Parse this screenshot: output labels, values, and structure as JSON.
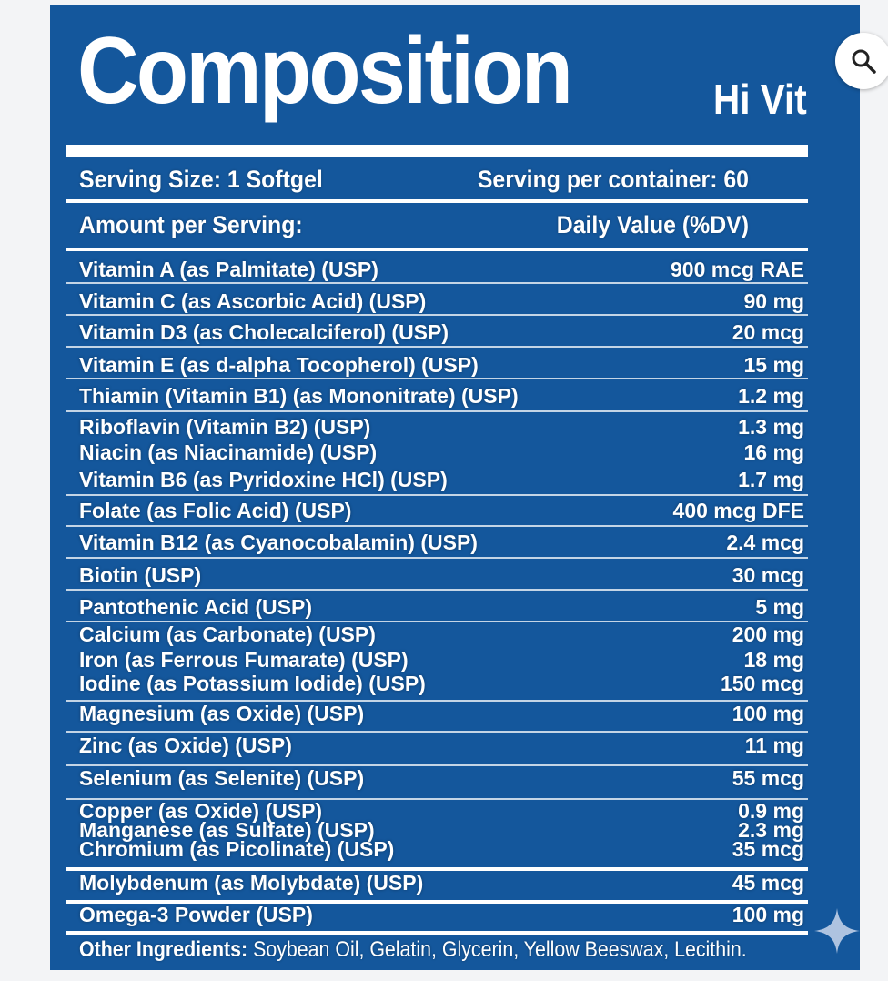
{
  "title": "Composition",
  "brand": "Hi Vit",
  "serving": {
    "size": "Serving Size: 1 Softgel",
    "per_container": "Serving per container: 60"
  },
  "header": {
    "amount": "Amount per Serving:",
    "daily_value": "Daily Value (%DV)"
  },
  "nutrients": [
    {
      "name": "Vitamin A (as Palmitate) (USP)",
      "amount": "900 mcg RAE"
    },
    {
      "name": "Vitamin C (as Ascorbic Acid) (USP)",
      "amount": "90 mg"
    },
    {
      "name": "Vitamin D3 (as Cholecalciferol) (USP)",
      "amount": "20 mcg"
    },
    {
      "name": "Vitamin E (as d-alpha Tocopherol) (USP)",
      "amount": "15 mg"
    },
    {
      "name": "Thiamin (Vitamin B1) (as Mononitrate) (USP)",
      "amount": "1.2 mg"
    },
    {
      "name": "Riboflavin (Vitamin B2) (USP)",
      "amount": "1.3 mg"
    },
    {
      "name": "Niacin (as Niacinamide) (USP)",
      "amount": "16 mg"
    },
    {
      "name": "Vitamin B6 (as Pyridoxine HCl) (USP)",
      "amount": "1.7 mg"
    },
    {
      "name": "Folate (as Folic Acid) (USP)",
      "amount": "400 mcg DFE"
    },
    {
      "name": "Vitamin B12 (as Cyanocobalamin) (USP)",
      "amount": "2.4 mcg"
    },
    {
      "name": "Biotin (USP)",
      "amount": "30 mcg"
    },
    {
      "name": "Pantothenic Acid (USP)",
      "amount": "5 mg"
    },
    {
      "name": "Calcium (as Carbonate) (USP)",
      "amount": "200 mg"
    },
    {
      "name": "Iron (as Ferrous Fumarate) (USP)",
      "amount": "18 mg"
    },
    {
      "name": "Iodine (as Potassium Iodide) (USP)",
      "amount": "150 mcg"
    },
    {
      "name": "Magnesium (as Oxide) (USP)",
      "amount": "100 mg"
    },
    {
      "name": "Zinc (as Oxide) (USP)",
      "amount": "11 mg"
    },
    {
      "name": "Selenium (as Selenite) (USP)",
      "amount": "55 mcg"
    },
    {
      "name": "Copper (as Oxide) (USP)",
      "amount": "0.9 mg"
    },
    {
      "name": "Manganese (as Sulfate) (USP)",
      "amount": "2.3 mg"
    },
    {
      "name": "Chromium (as Picolinate) (USP)",
      "amount": "35 mcg"
    },
    {
      "name": "Molybdenum (as Molybdate) (USP)",
      "amount": "45 mcg"
    },
    {
      "name": "Omega-3 Powder (USP)",
      "amount": "100 mg"
    }
  ],
  "other_ingredients": {
    "label": "Other Ingredients:",
    "text": " Soybean Oil, Gelatin, Glycerin, Yellow Beeswax, Lecithin."
  },
  "icons": {
    "search": "search-icon",
    "sparkle": "sparkle-icon"
  },
  "colors": {
    "panel": "#14579c",
    "text": "#ffffff"
  }
}
